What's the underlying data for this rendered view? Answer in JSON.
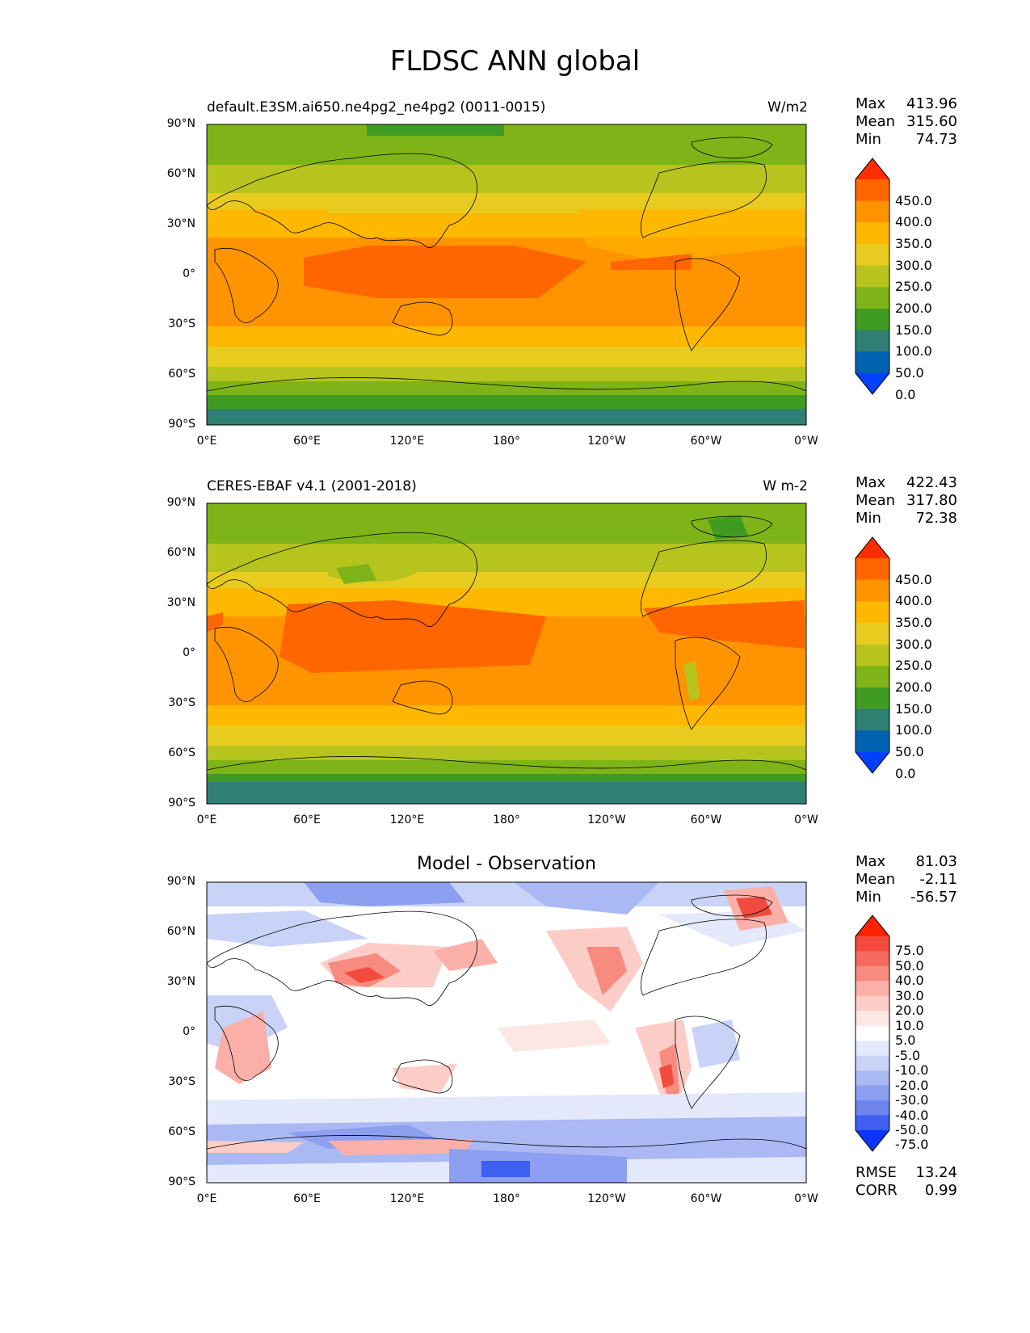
{
  "title": "FLDSC ANN global",
  "x_ticks": [
    "0°E",
    "60°E",
    "120°E",
    "180°",
    "120°W",
    "60°W",
    "0°W"
  ],
  "y_ticks": [
    "90°N",
    "60°N",
    "30°N",
    "0°",
    "30°S",
    "60°S",
    "90°S"
  ],
  "panels": [
    {
      "label": "default.E3SM.ai650.ne4pg2_ne4pg2 (0011-0015)",
      "units": "W/m2",
      "stats": [
        {
          "name": "Max",
          "value": "413.96"
        },
        {
          "name": "Mean",
          "value": "315.60"
        },
        {
          "name": "Min",
          "value": "74.73"
        }
      ],
      "colorbar_levels": [
        "450.0",
        "400.0",
        "350.0",
        "300.0",
        "250.0",
        "200.0",
        "150.0",
        "100.0",
        "50.0",
        "0.0"
      ],
      "colorbar_colors": [
        "#ff2e00",
        "#ff6600",
        "#ff9400",
        "#ffb800",
        "#e8cb1f",
        "#b7c41d",
        "#7eb417",
        "#3f9b22",
        "#2f7f73",
        "#0062b0",
        "#0040ff"
      ]
    },
    {
      "label": "CERES-EBAF v4.1 (2001-2018)",
      "units": "W m-2",
      "stats": [
        {
          "name": "Max",
          "value": "422.43"
        },
        {
          "name": "Mean",
          "value": "317.80"
        },
        {
          "name": "Min",
          "value": "72.38"
        }
      ],
      "colorbar_levels": [
        "450.0",
        "400.0",
        "350.0",
        "300.0",
        "250.0",
        "200.0",
        "150.0",
        "100.0",
        "50.0",
        "0.0"
      ],
      "colorbar_colors": [
        "#ff2e00",
        "#ff6600",
        "#ff9400",
        "#ffb800",
        "#e8cb1f",
        "#b7c41d",
        "#7eb417",
        "#3f9b22",
        "#2f7f73",
        "#0062b0",
        "#0040ff"
      ]
    },
    {
      "label": "Model - Observation",
      "units": "",
      "stats": [
        {
          "name": "Max",
          "value": "81.03"
        },
        {
          "name": "Mean",
          "value": "-2.11"
        },
        {
          "name": "Min",
          "value": "-56.57"
        }
      ],
      "colorbar_levels": [
        "75.0",
        "50.0",
        "40.0",
        "30.0",
        "20.0",
        "10.0",
        "5.0",
        "-5.0",
        "-10.0",
        "-20.0",
        "-30.0",
        "-40.0",
        "-50.0",
        "-75.0"
      ],
      "colorbar_colors": [
        "#ff2200",
        "#f24a3c",
        "#f46a5e",
        "#f78b80",
        "#fab0a8",
        "#fcccc7",
        "#fde7e4",
        "#ffffff",
        "#e3e8fb",
        "#c9d3f7",
        "#aab9f3",
        "#8c9ff0",
        "#6d84ec",
        "#3e5ff0",
        "#0a34ff"
      ],
      "metrics": [
        {
          "name": "RMSE",
          "value": "13.24"
        },
        {
          "name": "CORR",
          "value": "0.99"
        }
      ]
    }
  ]
}
